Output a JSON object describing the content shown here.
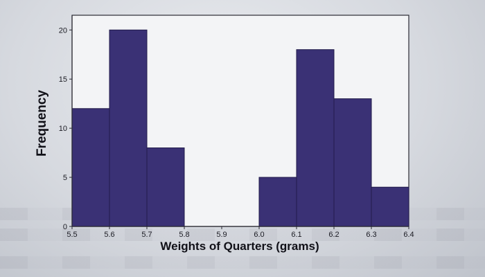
{
  "chart_data": {
    "type": "bar",
    "title": "",
    "xlabel": "Weights of Quarters (grams)",
    "ylabel": "Frequency",
    "bin_edges": [
      5.5,
      5.6,
      5.7,
      5.8,
      5.9,
      6.0,
      6.1,
      6.2,
      6.3,
      6.4
    ],
    "x_ticks": [
      "5.5",
      "5.6",
      "5.7",
      "5.8",
      "5.9",
      "6.0",
      "6.1",
      "6.2",
      "6.3",
      "6.4"
    ],
    "y_ticks": [
      "0",
      "5",
      "10",
      "15",
      "20"
    ],
    "y_tick_values": [
      0,
      5,
      10,
      15,
      20
    ],
    "values": [
      12,
      20,
      8,
      0,
      0,
      5,
      18,
      13,
      4
    ],
    "xlim": [
      5.5,
      6.4
    ],
    "ylim": [
      0,
      21.5
    ],
    "grid": false,
    "bar_color": "#3a3175"
  }
}
